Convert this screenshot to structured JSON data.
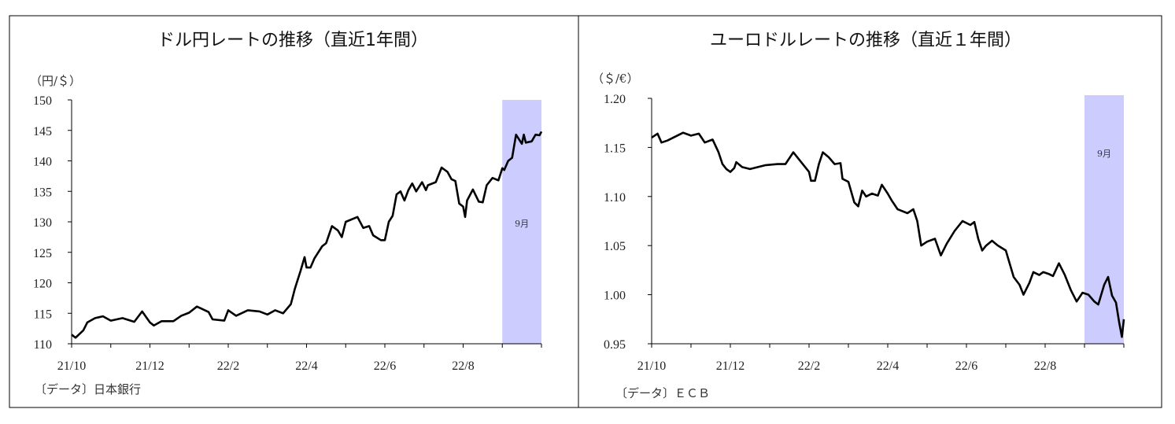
{
  "chart_data": [
    {
      "type": "line",
      "title": "ドル円レートの推移（直近1年間）",
      "ylabel": "（円/＄）",
      "source": "〔データ〕日本銀行",
      "ylim": [
        110,
        150
      ],
      "yticks": [
        "110",
        "115",
        "120",
        "125",
        "130",
        "135",
        "140",
        "145",
        "150"
      ],
      "xlim": [
        0,
        12
      ],
      "xticks": [
        {
          "m": 0,
          "label": "21/10"
        },
        {
          "m": 2,
          "label": "21/12"
        },
        {
          "m": 4,
          "label": "22/2"
        },
        {
          "m": 6,
          "label": "22/4"
        },
        {
          "m": 8,
          "label": "22/6"
        },
        {
          "m": 10,
          "label": "22/8"
        }
      ],
      "highlight": {
        "from": 11,
        "to": 12,
        "label": "9月",
        "color": "#ccccff"
      },
      "line_color": "#000000",
      "x": [
        0,
        0.1,
        0.3,
        0.4,
        0.6,
        0.8,
        1,
        1.3,
        1.6,
        1.8,
        2.0,
        2.1,
        2.3,
        2.6,
        2.8,
        3.0,
        3.2,
        3.5,
        3.6,
        3.9,
        4.0,
        4.2,
        4.5,
        4.8,
        5.0,
        5.2,
        5.4,
        5.6,
        5.7,
        5.85,
        5.95,
        6.0,
        6.1,
        6.2,
        6.4,
        6.5,
        6.65,
        6.8,
        6.9,
        7.0,
        7.3,
        7.45,
        7.6,
        7.7,
        7.9,
        8.0,
        8.1,
        8.2,
        8.3,
        8.4,
        8.5,
        8.6,
        8.7,
        8.8,
        8.95,
        9.05,
        9.1,
        9.3,
        9.45,
        9.6,
        9.7,
        9.8,
        9.9,
        10.0,
        10.05,
        10.1,
        10.25,
        10.4,
        10.5,
        10.6,
        10.75,
        10.9,
        11.0,
        11.05,
        11.15,
        11.25,
        11.35,
        11.5,
        11.55,
        11.6,
        11.75,
        11.85,
        11.95,
        12.0
      ],
      "y": [
        111.5,
        111,
        112.2,
        113.5,
        114.2,
        114.5,
        113.8,
        114.2,
        113.6,
        115.3,
        113.5,
        113.0,
        113.7,
        113.7,
        114.6,
        115.1,
        116.1,
        115.2,
        114.0,
        113.8,
        115.5,
        114.6,
        115.5,
        115.3,
        114.8,
        115.5,
        115.0,
        116.5,
        119,
        122,
        124.2,
        122.5,
        122.5,
        124,
        126,
        126.5,
        129.3,
        128.6,
        127.5,
        130,
        130.8,
        129,
        129.3,
        127.8,
        127,
        127,
        130,
        131,
        134.5,
        135,
        133.5,
        135.2,
        136.3,
        135,
        136.5,
        135.2,
        136,
        136.5,
        138.9,
        138.2,
        137,
        136.7,
        133,
        132.5,
        130.8,
        133.5,
        135.3,
        133.3,
        133.2,
        136,
        137.2,
        136.8,
        138.8,
        138.5,
        140,
        140.5,
        144.3,
        142.8,
        144.3,
        143.0,
        143.2,
        144.3,
        144.2,
        144.8
      ]
    },
    {
      "type": "line",
      "title": "ユーロドルレートの推移（直近１年間）",
      "ylabel": "（＄/€）",
      "source": "〔データ〕ＥＣＢ",
      "ylim": [
        0.95,
        1.2
      ],
      "yticks": [
        "0.95",
        "1.00",
        "1.05",
        "1.10",
        "1.15",
        "1.20"
      ],
      "xlim": [
        0,
        12
      ],
      "xticks": [
        {
          "m": 0,
          "label": "21/10"
        },
        {
          "m": 2,
          "label": "21/12"
        },
        {
          "m": 4,
          "label": "22/2"
        },
        {
          "m": 6,
          "label": "22/4"
        },
        {
          "m": 8,
          "label": "22/6"
        },
        {
          "m": 10,
          "label": "22/8"
        }
      ],
      "highlight": {
        "from": 11,
        "to": 12,
        "label": "9月",
        "color": "#ccccff"
      },
      "line_color": "#000000",
      "x": [
        0,
        0.15,
        0.25,
        0.4,
        0.6,
        0.8,
        1.0,
        1.2,
        1.35,
        1.55,
        1.7,
        1.8,
        1.9,
        2.0,
        2.1,
        2.15,
        2.3,
        2.5,
        2.7,
        2.9,
        3.2,
        3.4,
        3.6,
        3.8,
        4.0,
        4.05,
        4.15,
        4.25,
        4.35,
        4.5,
        4.65,
        4.8,
        4.85,
        5.0,
        5.15,
        5.25,
        5.35,
        5.45,
        5.6,
        5.75,
        5.85,
        6.0,
        6.1,
        6.25,
        6.5,
        6.65,
        6.75,
        6.85,
        7.0,
        7.2,
        7.35,
        7.5,
        7.7,
        7.9,
        8.1,
        8.2,
        8.3,
        8.4,
        8.5,
        8.65,
        8.8,
        9.0,
        9.2,
        9.35,
        9.45,
        9.6,
        9.7,
        9.85,
        9.95,
        10.1,
        10.2,
        10.35,
        10.5,
        10.65,
        10.8,
        10.95,
        11.1,
        11.25,
        11.35,
        11.5,
        11.6,
        11.7,
        11.8,
        11.88,
        11.95,
        12.0
      ],
      "y": [
        1.16,
        1.164,
        1.155,
        1.157,
        1.161,
        1.165,
        1.162,
        1.164,
        1.155,
        1.158,
        1.145,
        1.133,
        1.128,
        1.125,
        1.129,
        1.135,
        1.13,
        1.128,
        1.13,
        1.132,
        1.133,
        1.133,
        1.145,
        1.135,
        1.125,
        1.116,
        1.116,
        1.133,
        1.145,
        1.14,
        1.133,
        1.134,
        1.118,
        1.115,
        1.094,
        1.09,
        1.106,
        1.1,
        1.103,
        1.101,
        1.112,
        1.103,
        1.096,
        1.087,
        1.083,
        1.087,
        1.075,
        1.05,
        1.054,
        1.057,
        1.04,
        1.052,
        1.065,
        1.075,
        1.071,
        1.074,
        1.057,
        1.045,
        1.05,
        1.055,
        1.05,
        1.045,
        1.018,
        1.01,
        1.0,
        1.012,
        1.023,
        1.02,
        1.023,
        1.021,
        1.019,
        1.032,
        1.02,
        1.005,
        0.993,
        1.002,
        1.0,
        0.993,
        0.99,
        1.01,
        1.018,
        0.999,
        0.992,
        0.972,
        0.957,
        0.975
      ]
    }
  ]
}
